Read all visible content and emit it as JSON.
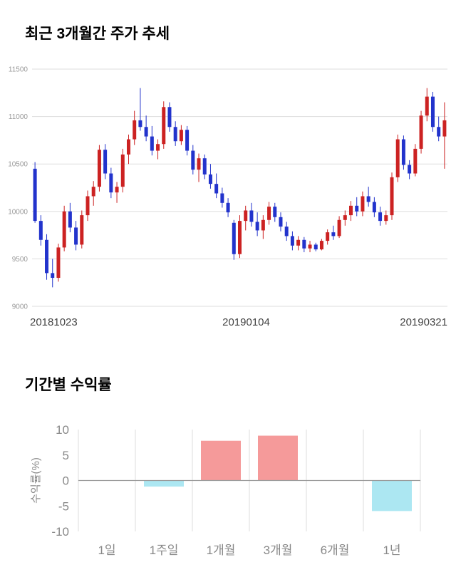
{
  "chart_data": [
    {
      "type": "candlestick",
      "title": "최근 3개월간 주가 추세",
      "ylim": [
        9000,
        11500
      ],
      "yticks": [
        9000,
        9500,
        10000,
        10500,
        11000,
        11500
      ],
      "xtick_labels": [
        "20181023",
        "20190104",
        "20190321"
      ],
      "grid": true,
      "legend": "none",
      "up_color": "#cc2222",
      "down_color": "#2233cc",
      "candles_ohlc": [
        [
          10450,
          10520,
          9880,
          9900
        ],
        [
          9900,
          9960,
          9640,
          9700
        ],
        [
          9700,
          9760,
          9280,
          9350
        ],
        [
          9350,
          9500,
          9200,
          9300
        ],
        [
          9300,
          9660,
          9260,
          9620
        ],
        [
          9620,
          10060,
          9580,
          10000
        ],
        [
          10000,
          10090,
          9780,
          9830
        ],
        [
          9830,
          9900,
          9590,
          9650
        ],
        [
          9650,
          10010,
          9610,
          9960
        ],
        [
          9960,
          10220,
          9900,
          10160
        ],
        [
          10160,
          10320,
          10060,
          10260
        ],
        [
          10260,
          10700,
          10210,
          10650
        ],
        [
          10650,
          10710,
          10340,
          10400
        ],
        [
          10400,
          10460,
          10140,
          10200
        ],
        [
          10200,
          10310,
          10090,
          10260
        ],
        [
          10260,
          10660,
          10200,
          10600
        ],
        [
          10600,
          10810,
          10500,
          10760
        ],
        [
          10760,
          11060,
          10700,
          10960
        ],
        [
          10960,
          11300,
          10850,
          10890
        ],
        [
          10890,
          11010,
          10740,
          10790
        ],
        [
          10790,
          10900,
          10590,
          10640
        ],
        [
          10640,
          10760,
          10550,
          10710
        ],
        [
          10710,
          11160,
          10660,
          11100
        ],
        [
          11100,
          11150,
          10840,
          10890
        ],
        [
          10890,
          10950,
          10690,
          10740
        ],
        [
          10740,
          10910,
          10700,
          10860
        ],
        [
          10860,
          10900,
          10590,
          10640
        ],
        [
          10640,
          10700,
          10390,
          10440
        ],
        [
          10440,
          10610,
          10310,
          10560
        ],
        [
          10560,
          10600,
          10340,
          10390
        ],
        [
          10390,
          10500,
          10240,
          10290
        ],
        [
          10290,
          10400,
          10140,
          10190
        ],
        [
          10190,
          10250,
          10040,
          10090
        ],
        [
          10090,
          10140,
          9940,
          9990
        ],
        [
          9880,
          9910,
          9490,
          9550
        ],
        [
          9550,
          9960,
          9510,
          9900
        ],
        [
          9900,
          10060,
          9800,
          10010
        ],
        [
          10010,
          10090,
          9840,
          9890
        ],
        [
          9890,
          9990,
          9740,
          9800
        ],
        [
          9800,
          9960,
          9710,
          9910
        ],
        [
          9910,
          10100,
          9860,
          10050
        ],
        [
          10050,
          10090,
          9890,
          9940
        ],
        [
          9940,
          9990,
          9790,
          9840
        ],
        [
          9840,
          9890,
          9690,
          9740
        ],
        [
          9740,
          9790,
          9590,
          9640
        ],
        [
          9640,
          9740,
          9590,
          9700
        ],
        [
          9700,
          9730,
          9570,
          9610
        ],
        [
          9610,
          9690,
          9570,
          9650
        ],
        [
          9650,
          9670,
          9580,
          9600
        ],
        [
          9600,
          9710,
          9590,
          9690
        ],
        [
          9690,
          9810,
          9650,
          9780
        ],
        [
          9780,
          9850,
          9700,
          9740
        ],
        [
          9740,
          9950,
          9720,
          9910
        ],
        [
          9910,
          10010,
          9850,
          9960
        ],
        [
          9960,
          10110,
          9900,
          10060
        ],
        [
          10060,
          10150,
          9950,
          10000
        ],
        [
          10000,
          10210,
          9950,
          10160
        ],
        [
          10160,
          10260,
          10050,
          10100
        ],
        [
          10100,
          10150,
          9940,
          9990
        ],
        [
          9990,
          10050,
          9850,
          9900
        ],
        [
          9900,
          10010,
          9860,
          9960
        ],
        [
          9960,
          10410,
          9910,
          10360
        ],
        [
          10360,
          10810,
          10310,
          10760
        ],
        [
          10760,
          10800,
          10440,
          10490
        ],
        [
          10490,
          10540,
          10340,
          10400
        ],
        [
          10400,
          10710,
          10370,
          10660
        ],
        [
          10660,
          11060,
          10610,
          11010
        ],
        [
          11010,
          11300,
          10950,
          11210
        ],
        [
          11210,
          11260,
          10840,
          10890
        ],
        [
          10890,
          11000,
          10740,
          10790
        ],
        [
          10790,
          11150,
          10450,
          10960
        ]
      ]
    },
    {
      "type": "bar",
      "title": "기간별 수익률",
      "categories": [
        "1일",
        "1주일",
        "1개월",
        "3개월",
        "6개월",
        "1년"
      ],
      "values": [
        0,
        -1.2,
        7.8,
        8.8,
        0,
        -6.0
      ],
      "xlabel": "",
      "ylabel": "수익률(%)",
      "ylim": [
        -10,
        10
      ],
      "yticks": [
        -10,
        -5,
        0,
        5,
        10
      ],
      "grid": true,
      "legend": "none",
      "positive_color": "#f59a9a",
      "negative_color": "#ace7f2"
    }
  ]
}
